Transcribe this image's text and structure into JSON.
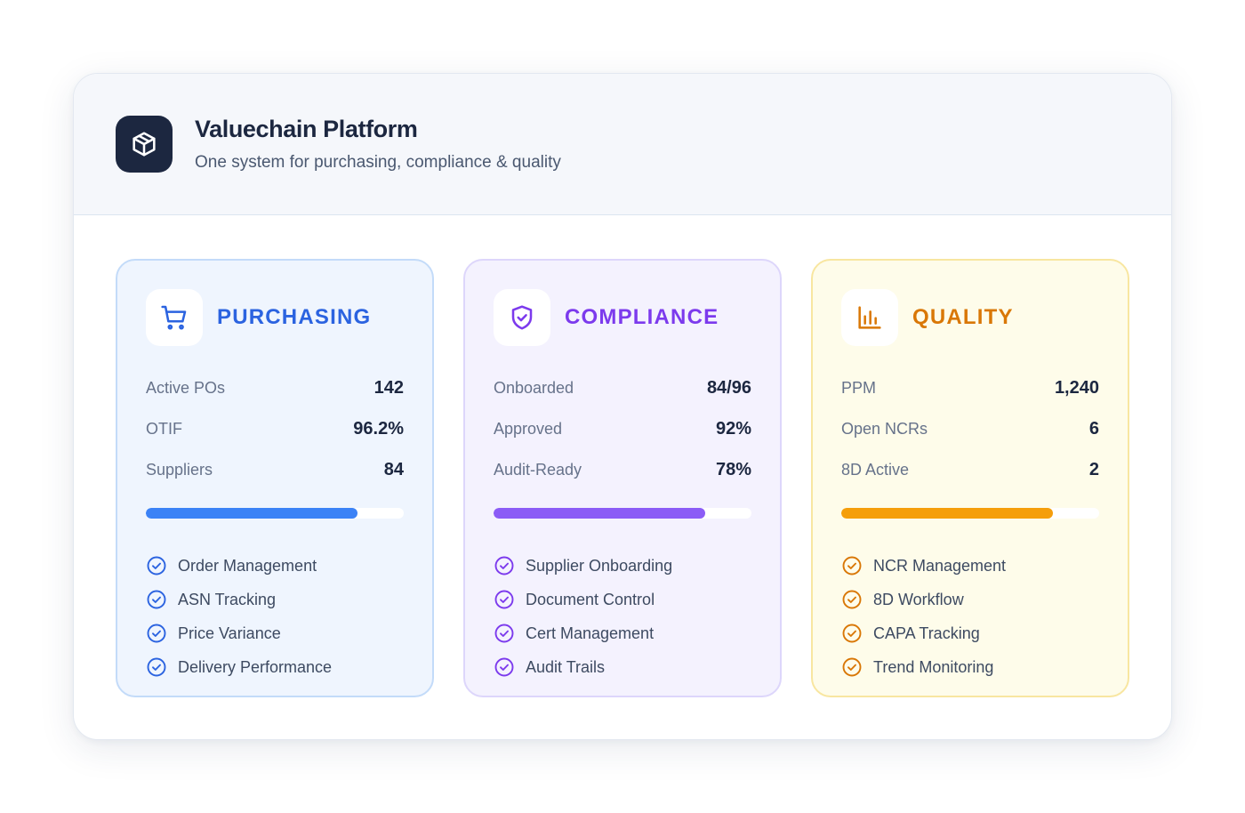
{
  "header": {
    "title": "Valuechain Platform",
    "subtitle": "One system for purchasing, compliance & quality",
    "logo_icon": "box-icon"
  },
  "cards": [
    {
      "key": "purchasing",
      "title": "PURCHASING",
      "icon": "cart-icon",
      "accent": "#2b63e0",
      "bar_color": "#3b82f6",
      "progress": 0.82,
      "stats": [
        {
          "label": "Active POs",
          "value": "142"
        },
        {
          "label": "OTIF",
          "value": "96.2%"
        },
        {
          "label": "Suppliers",
          "value": "84"
        }
      ],
      "features": [
        "Order Management",
        "ASN Tracking",
        "Price Variance",
        "Delivery Performance"
      ]
    },
    {
      "key": "compliance",
      "title": "COMPLIANCE",
      "icon": "shield-check-icon",
      "accent": "#7c3aed",
      "bar_color": "#8b5cf6",
      "progress": 0.82,
      "stats": [
        {
          "label": "Onboarded",
          "value": "84/96"
        },
        {
          "label": "Approved",
          "value": "92%"
        },
        {
          "label": "Audit-Ready",
          "value": "78%"
        }
      ],
      "features": [
        "Supplier Onboarding",
        "Document Control",
        "Cert Management",
        "Audit Trails"
      ]
    },
    {
      "key": "quality",
      "title": "QUALITY",
      "icon": "bar-chart-icon",
      "accent": "#d97706",
      "bar_color": "#f59e0b",
      "progress": 0.82,
      "stats": [
        {
          "label": "PPM",
          "value": "1,240"
        },
        {
          "label": "Open NCRs",
          "value": "6"
        },
        {
          "label": "8D Active",
          "value": "2"
        }
      ],
      "features": [
        "NCR Management",
        "8D Workflow",
        "CAPA Tracking",
        "Trend Monitoring"
      ]
    }
  ]
}
